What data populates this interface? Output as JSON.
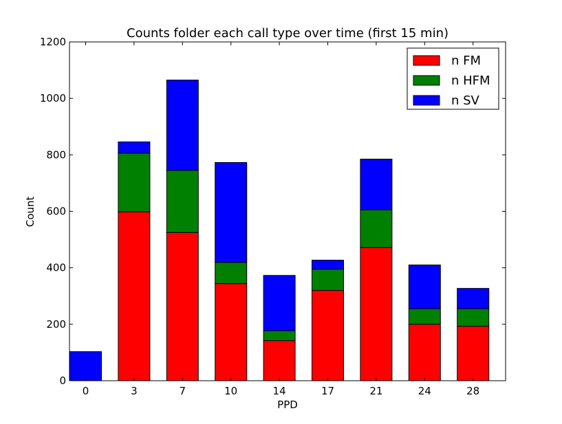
{
  "chart_data": {
    "type": "bar",
    "stacked": true,
    "title": "Counts folder each call type over time (first 15 min)",
    "xlabel": "PPD",
    "ylabel": "Count",
    "ylim": [
      0,
      1200
    ],
    "yticks": [
      0,
      200,
      400,
      600,
      800,
      1000,
      1200
    ],
    "categories": [
      "0",
      "3",
      "7",
      "10",
      "14",
      "17",
      "21",
      "24",
      "28"
    ],
    "series": [
      {
        "name": "n FM",
        "color": "#ff0000",
        "values": [
          0,
          598,
          525,
          344,
          142,
          320,
          472,
          200,
          193
        ]
      },
      {
        "name": "n HFM",
        "color": "#008000",
        "values": [
          0,
          208,
          220,
          75,
          35,
          75,
          133,
          55,
          62
        ]
      },
      {
        "name": "n SV",
        "color": "#0000ff",
        "values": [
          103,
          40,
          320,
          354,
          196,
          32,
          180,
          155,
          72
        ]
      }
    ],
    "legend_position": "top-right",
    "grid": false
  }
}
